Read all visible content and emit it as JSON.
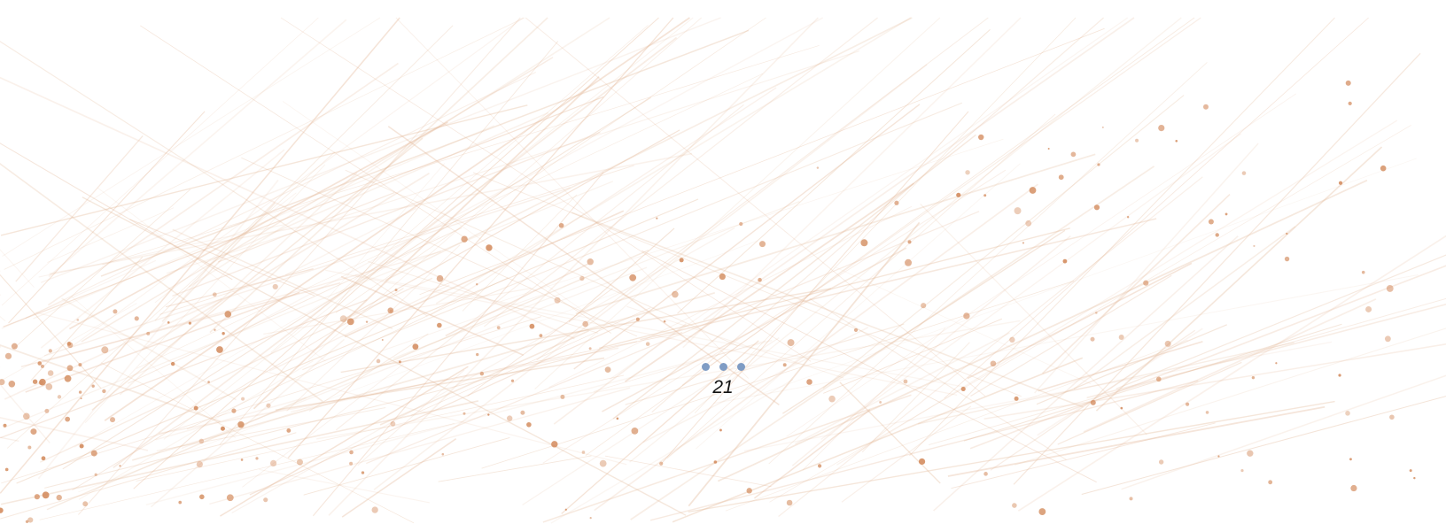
{
  "loader": {
    "count": "21"
  }
}
